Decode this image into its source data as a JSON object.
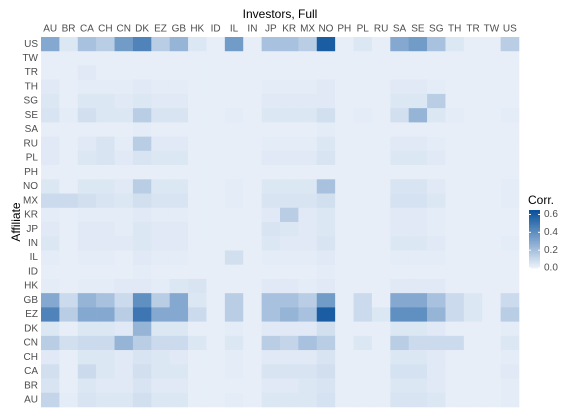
{
  "chart_data": {
    "type": "heatmap",
    "xlabel": "Investors, Full",
    "ylabel": "Affiliate",
    "legend_title": "Corr.",
    "x": [
      "AU",
      "BR",
      "CA",
      "CH",
      "CN",
      "DK",
      "EZ",
      "GB",
      "HK",
      "ID",
      "IL",
      "IN",
      "JP",
      "KR",
      "MX",
      "NO",
      "PH",
      "PL",
      "RU",
      "SA",
      "SE",
      "SG",
      "TH",
      "TR",
      "TW",
      "US"
    ],
    "y": [
      "US",
      "TW",
      "TR",
      "TH",
      "SG",
      "SE",
      "SA",
      "RU",
      "PL",
      "PH",
      "NO",
      "MX",
      "KR",
      "JP",
      "IN",
      "IL",
      "ID",
      "HK",
      "GB",
      "EZ",
      "DK",
      "CN",
      "CH",
      "CA",
      "BR",
      "AU"
    ],
    "z": [
      [
        0.3,
        0.05,
        0.2,
        0.15,
        0.35,
        0.45,
        0.15,
        0.25,
        0.05,
        0.02,
        0.35,
        0.02,
        0.2,
        0.2,
        0.15,
        0.6,
        0.02,
        0.05,
        0.02,
        0.3,
        0.35,
        0.2,
        0.05,
        0.02,
        0.02,
        0.15
      ],
      [
        0.02,
        0.02,
        0.02,
        0.02,
        0.02,
        0.02,
        0.02,
        0.02,
        0.02,
        0.02,
        0.02,
        0.02,
        0.02,
        0.02,
        0.02,
        0.02,
        0.02,
        0.02,
        0.02,
        0.02,
        0.02,
        0.02,
        0.02,
        0.02,
        0.02,
        0.02
      ],
      [
        0.02,
        0.02,
        0.04,
        0.02,
        0.02,
        0.02,
        0.02,
        0.02,
        0.02,
        0.02,
        0.02,
        0.02,
        0.02,
        0.02,
        0.02,
        0.02,
        0.02,
        0.02,
        0.02,
        0.02,
        0.02,
        0.02,
        0.02,
        0.02,
        0.02,
        0.02
      ],
      [
        0.04,
        0.02,
        0.03,
        0.03,
        0.03,
        0.04,
        0.03,
        0.03,
        0.02,
        0.02,
        0.02,
        0.02,
        0.03,
        0.03,
        0.03,
        0.04,
        0.02,
        0.02,
        0.02,
        0.04,
        0.04,
        0.03,
        0.02,
        0.02,
        0.02,
        0.02
      ],
      [
        0.05,
        0.02,
        0.05,
        0.05,
        0.04,
        0.05,
        0.04,
        0.04,
        0.02,
        0.02,
        0.02,
        0.02,
        0.04,
        0.04,
        0.04,
        0.04,
        0.02,
        0.02,
        0.02,
        0.05,
        0.05,
        0.15,
        0.02,
        0.02,
        0.02,
        0.02
      ],
      [
        0.06,
        0.03,
        0.08,
        0.05,
        0.05,
        0.15,
        0.06,
        0.06,
        0.02,
        0.02,
        0.03,
        0.02,
        0.05,
        0.05,
        0.05,
        0.08,
        0.02,
        0.03,
        0.02,
        0.08,
        0.25,
        0.05,
        0.03,
        0.02,
        0.02,
        0.03
      ],
      [
        0.02,
        0.02,
        0.02,
        0.02,
        0.02,
        0.03,
        0.02,
        0.02,
        0.02,
        0.02,
        0.02,
        0.02,
        0.02,
        0.02,
        0.02,
        0.03,
        0.02,
        0.02,
        0.02,
        0.02,
        0.02,
        0.02,
        0.02,
        0.02,
        0.02,
        0.02
      ],
      [
        0.04,
        0.02,
        0.04,
        0.06,
        0.03,
        0.15,
        0.04,
        0.04,
        0.02,
        0.02,
        0.02,
        0.02,
        0.03,
        0.03,
        0.03,
        0.05,
        0.02,
        0.02,
        0.02,
        0.04,
        0.04,
        0.03,
        0.02,
        0.02,
        0.02,
        0.02
      ],
      [
        0.04,
        0.02,
        0.05,
        0.06,
        0.04,
        0.06,
        0.05,
        0.05,
        0.02,
        0.02,
        0.02,
        0.02,
        0.04,
        0.04,
        0.04,
        0.06,
        0.02,
        0.02,
        0.02,
        0.05,
        0.05,
        0.04,
        0.02,
        0.02,
        0.02,
        0.02
      ],
      [
        0.02,
        0.02,
        0.02,
        0.02,
        0.02,
        0.02,
        0.02,
        0.02,
        0.02,
        0.02,
        0.02,
        0.02,
        0.02,
        0.02,
        0.02,
        0.02,
        0.02,
        0.02,
        0.02,
        0.02,
        0.02,
        0.02,
        0.02,
        0.02,
        0.02,
        0.02
      ],
      [
        0.05,
        0.02,
        0.05,
        0.05,
        0.04,
        0.15,
        0.05,
        0.05,
        0.02,
        0.02,
        0.03,
        0.02,
        0.05,
        0.05,
        0.05,
        0.2,
        0.02,
        0.02,
        0.02,
        0.06,
        0.06,
        0.04,
        0.02,
        0.02,
        0.02,
        0.03
      ],
      [
        0.1,
        0.1,
        0.08,
        0.06,
        0.05,
        0.08,
        0.06,
        0.06,
        0.02,
        0.02,
        0.03,
        0.02,
        0.06,
        0.06,
        0.06,
        0.08,
        0.02,
        0.02,
        0.02,
        0.07,
        0.07,
        0.05,
        0.02,
        0.02,
        0.02,
        0.03
      ],
      [
        0.03,
        0.02,
        0.03,
        0.03,
        0.03,
        0.04,
        0.03,
        0.03,
        0.02,
        0.02,
        0.02,
        0.02,
        0.04,
        0.15,
        0.04,
        0.05,
        0.02,
        0.02,
        0.02,
        0.04,
        0.04,
        0.03,
        0.02,
        0.02,
        0.02,
        0.02
      ],
      [
        0.04,
        0.02,
        0.04,
        0.04,
        0.03,
        0.05,
        0.04,
        0.04,
        0.02,
        0.02,
        0.02,
        0.02,
        0.06,
        0.05,
        0.04,
        0.05,
        0.02,
        0.02,
        0.02,
        0.04,
        0.04,
        0.03,
        0.02,
        0.02,
        0.02,
        0.02
      ],
      [
        0.05,
        0.02,
        0.04,
        0.04,
        0.04,
        0.05,
        0.04,
        0.04,
        0.02,
        0.02,
        0.02,
        0.02,
        0.05,
        0.04,
        0.04,
        0.06,
        0.02,
        0.02,
        0.02,
        0.05,
        0.05,
        0.04,
        0.02,
        0.02,
        0.02,
        0.03
      ],
      [
        0.03,
        0.02,
        0.03,
        0.03,
        0.02,
        0.04,
        0.03,
        0.03,
        0.02,
        0.02,
        0.08,
        0.02,
        0.03,
        0.03,
        0.03,
        0.04,
        0.02,
        0.02,
        0.02,
        0.03,
        0.03,
        0.03,
        0.02,
        0.02,
        0.02,
        0.02
      ],
      [
        0.02,
        0.02,
        0.02,
        0.02,
        0.02,
        0.03,
        0.02,
        0.02,
        0.02,
        0.02,
        0.02,
        0.02,
        0.02,
        0.02,
        0.02,
        0.03,
        0.02,
        0.02,
        0.02,
        0.02,
        0.02,
        0.02,
        0.02,
        0.02,
        0.02,
        0.02
      ],
      [
        0.03,
        0.02,
        0.03,
        0.03,
        0.04,
        0.04,
        0.03,
        0.05,
        0.06,
        0.02,
        0.02,
        0.02,
        0.04,
        0.04,
        0.03,
        0.04,
        0.02,
        0.02,
        0.02,
        0.04,
        0.04,
        0.04,
        0.02,
        0.02,
        0.02,
        0.02
      ],
      [
        0.3,
        0.1,
        0.25,
        0.2,
        0.1,
        0.4,
        0.15,
        0.3,
        0.05,
        0.02,
        0.15,
        0.02,
        0.2,
        0.2,
        0.15,
        0.35,
        0.02,
        0.1,
        0.02,
        0.3,
        0.3,
        0.2,
        0.1,
        0.05,
        0.02,
        0.1
      ],
      [
        0.45,
        0.15,
        0.3,
        0.3,
        0.15,
        0.5,
        0.3,
        0.3,
        0.1,
        0.02,
        0.15,
        0.02,
        0.2,
        0.25,
        0.2,
        0.6,
        0.02,
        0.1,
        0.05,
        0.4,
        0.4,
        0.25,
        0.1,
        0.05,
        0.02,
        0.15
      ],
      [
        0.05,
        0.02,
        0.05,
        0.05,
        0.04,
        0.25,
        0.05,
        0.05,
        0.02,
        0.02,
        0.03,
        0.02,
        0.04,
        0.04,
        0.04,
        0.08,
        0.02,
        0.02,
        0.02,
        0.05,
        0.05,
        0.04,
        0.02,
        0.02,
        0.02,
        0.03
      ],
      [
        0.15,
        0.08,
        0.1,
        0.1,
        0.25,
        0.15,
        0.1,
        0.1,
        0.05,
        0.02,
        0.05,
        0.02,
        0.15,
        0.12,
        0.2,
        0.15,
        0.02,
        0.05,
        0.02,
        0.15,
        0.1,
        0.1,
        0.1,
        0.02,
        0.02,
        0.05
      ],
      [
        0.04,
        0.02,
        0.05,
        0.05,
        0.04,
        0.06,
        0.05,
        0.04,
        0.02,
        0.02,
        0.03,
        0.02,
        0.04,
        0.04,
        0.04,
        0.06,
        0.02,
        0.02,
        0.02,
        0.05,
        0.05,
        0.04,
        0.02,
        0.02,
        0.02,
        0.03
      ],
      [
        0.08,
        0.02,
        0.1,
        0.05,
        0.04,
        0.08,
        0.05,
        0.05,
        0.02,
        0.02,
        0.03,
        0.02,
        0.06,
        0.06,
        0.06,
        0.08,
        0.02,
        0.02,
        0.02,
        0.07,
        0.07,
        0.04,
        0.02,
        0.02,
        0.02,
        0.04
      ],
      [
        0.06,
        0.02,
        0.05,
        0.04,
        0.04,
        0.06,
        0.04,
        0.04,
        0.02,
        0.02,
        0.02,
        0.02,
        0.04,
        0.04,
        0.05,
        0.06,
        0.02,
        0.02,
        0.02,
        0.05,
        0.05,
        0.04,
        0.02,
        0.02,
        0.02,
        0.03
      ],
      [
        0.12,
        0.03,
        0.06,
        0.05,
        0.05,
        0.08,
        0.05,
        0.05,
        0.02,
        0.02,
        0.03,
        0.02,
        0.05,
        0.05,
        0.05,
        0.07,
        0.02,
        0.02,
        0.02,
        0.06,
        0.06,
        0.05,
        0.02,
        0.02,
        0.02,
        0.03
      ]
    ],
    "colors": [
      "#eef3fb",
      "#08519c"
    ],
    "zlim": [
      0,
      0.65
    ],
    "zticks": [
      {
        "value": 0,
        "label": "0.0"
      },
      0.2,
      0.4,
      0.6
    ]
  }
}
